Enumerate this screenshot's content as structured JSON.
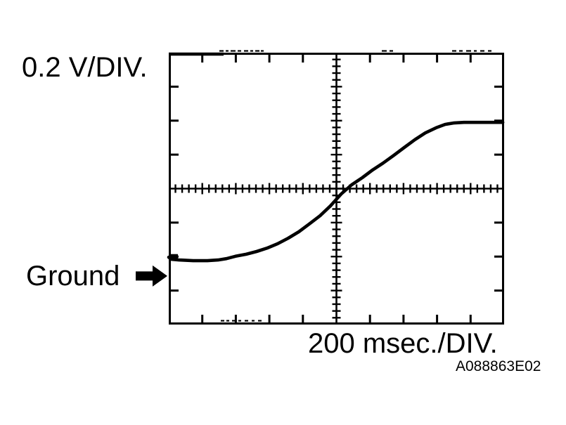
{
  "labels": {
    "y_scale": "0.2 V/DIV.",
    "ground": "Ground",
    "x_scale": "200 msec./DIV.",
    "figure_code": "A088863E02"
  },
  "colors": {
    "ink": "#000000",
    "background": "#ffffff"
  },
  "chart_data": {
    "type": "line",
    "title": "",
    "xlabel": "200 msec./DIV.",
    "ylabel": "0.2 V/DIV.",
    "grid_style": "oscilloscope center-crosshair graticule",
    "legend": "none",
    "x_axis": {
      "divisions": 10,
      "per_division": "200 msec",
      "minor_ticks_per_division": 5
    },
    "y_axis": {
      "divisions": 8,
      "per_division": "0.2 V",
      "minor_ticks_per_division": 5
    },
    "annotations": [
      {
        "text": "Ground",
        "marker": "solid-right-arrow",
        "position": "outside-left",
        "y_div": -2.57
      }
    ],
    "series": [
      {
        "name": "trace",
        "units": "screen divisions from center (x right, y up)",
        "points_div": [
          [
            -5.0,
            -2.02
          ],
          [
            -4.92,
            -2.08
          ],
          [
            -4.69,
            -2.1
          ],
          [
            -4.27,
            -2.12
          ],
          [
            -3.85,
            -2.12
          ],
          [
            -3.53,
            -2.1
          ],
          [
            -3.28,
            -2.06
          ],
          [
            -3.01,
            -1.99
          ],
          [
            -2.69,
            -1.93
          ],
          [
            -2.38,
            -1.85
          ],
          [
            -2.07,
            -1.75
          ],
          [
            -1.75,
            -1.62
          ],
          [
            -1.44,
            -1.46
          ],
          [
            -1.12,
            -1.27
          ],
          [
            -0.81,
            -1.04
          ],
          [
            -0.49,
            -0.8
          ],
          [
            -0.18,
            -0.51
          ],
          [
            0.14,
            -0.16
          ],
          [
            0.45,
            0.11
          ],
          [
            0.77,
            0.32
          ],
          [
            1.08,
            0.55
          ],
          [
            1.39,
            0.75
          ],
          [
            1.71,
            0.98
          ],
          [
            2.02,
            1.21
          ],
          [
            2.34,
            1.44
          ],
          [
            2.65,
            1.64
          ],
          [
            2.97,
            1.79
          ],
          [
            3.24,
            1.89
          ],
          [
            3.49,
            1.93
          ],
          [
            3.8,
            1.95
          ],
          [
            4.64,
            1.95
          ],
          [
            4.96,
            1.95
          ]
        ]
      }
    ],
    "figure_code": "A088863E02"
  }
}
